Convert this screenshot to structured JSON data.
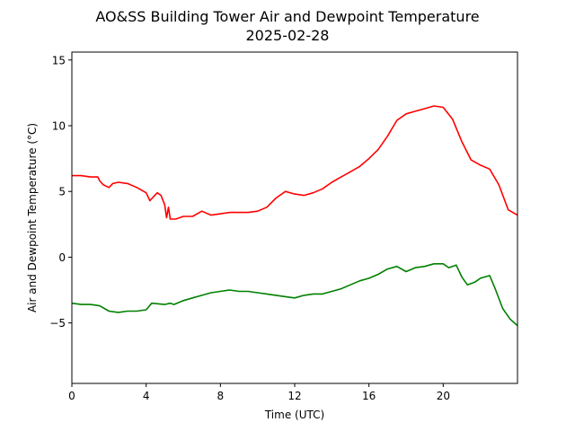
{
  "chart_data": {
    "type": "line",
    "title": "AO&SS Building Tower Air and Dewpoint Temperature",
    "subtitle": "2025-02-28",
    "xlabel": "Time (UTC)",
    "ylabel": "Air and Dewpoint Temperature (°C)",
    "xlim": [
      0,
      24
    ],
    "ylim": [
      -9.6,
      15.6
    ],
    "xticks": [
      0,
      4,
      8,
      12,
      16,
      20
    ],
    "yticks": [
      -5,
      0,
      5,
      10,
      15
    ],
    "grid": false,
    "series": [
      {
        "color": "#ff0000",
        "x": [
          0,
          0.5,
          1,
          1.4,
          1.5,
          1.7,
          2,
          2.2,
          2.5,
          3,
          3.5,
          4,
          4.2,
          4.4,
          4.6,
          4.8,
          5,
          5.1,
          5.2,
          5.3,
          5.6,
          6,
          6.5,
          7,
          7.5,
          8,
          8.5,
          9,
          9.5,
          10,
          10.5,
          11,
          11.5,
          12,
          12.5,
          13,
          13.5,
          14,
          14.5,
          15,
          15.5,
          16,
          16.5,
          17,
          17.5,
          18,
          18.5,
          19,
          19.5,
          20,
          20.5,
          21,
          21.5,
          22,
          22.5,
          23,
          23.5,
          24
        ],
        "y": [
          6.2,
          6.2,
          6.1,
          6.1,
          5.8,
          5.5,
          5.3,
          5.6,
          5.7,
          5.6,
          5.3,
          4.9,
          4.3,
          4.6,
          4.9,
          4.7,
          4.0,
          3.0,
          3.8,
          2.9,
          2.9,
          3.1,
          3.1,
          3.5,
          3.2,
          3.3,
          3.4,
          3.4,
          3.4,
          3.5,
          3.8,
          4.5,
          5.0,
          4.8,
          4.7,
          4.9,
          5.2,
          5.7,
          6.1,
          6.5,
          6.9,
          7.5,
          8.2,
          9.2,
          10.4,
          10.9,
          11.1,
          11.3,
          11.5,
          11.4,
          10.5,
          8.8,
          7.4,
          7.0,
          6.7,
          5.5,
          3.6,
          3.2
        ]
      },
      {
        "color": "#008000",
        "x": [
          0,
          0.5,
          1,
          1.5,
          2,
          2.5,
          3,
          3.5,
          4,
          4.3,
          5,
          5.3,
          5.5,
          6,
          6.5,
          7,
          7.5,
          8,
          8.5,
          9,
          9.5,
          10,
          10.5,
          11,
          11.5,
          12,
          12.5,
          13,
          13.5,
          14,
          14.5,
          15,
          15.5,
          16,
          16.5,
          17,
          17.5,
          18,
          18.5,
          19,
          19.5,
          20,
          20.3,
          20.7,
          21,
          21.3,
          21.7,
          22,
          22.5,
          22.8,
          23.2,
          23.6,
          24
        ],
        "y": [
          -3.5,
          -3.6,
          -3.6,
          -3.7,
          -4.1,
          -4.2,
          -4.1,
          -4.1,
          -4.0,
          -3.5,
          -3.6,
          -3.5,
          -3.6,
          -3.3,
          -3.1,
          -2.9,
          -2.7,
          -2.6,
          -2.5,
          -2.6,
          -2.6,
          -2.7,
          -2.8,
          -2.9,
          -3.0,
          -3.1,
          -2.9,
          -2.8,
          -2.8,
          -2.6,
          -2.4,
          -2.1,
          -1.8,
          -1.6,
          -1.3,
          -0.9,
          -0.7,
          -1.1,
          -0.8,
          -0.7,
          -0.5,
          -0.5,
          -0.8,
          -0.6,
          -1.5,
          -2.1,
          -1.9,
          -1.6,
          -1.4,
          -2.4,
          -3.9,
          -4.7,
          -5.2
        ]
      }
    ]
  }
}
